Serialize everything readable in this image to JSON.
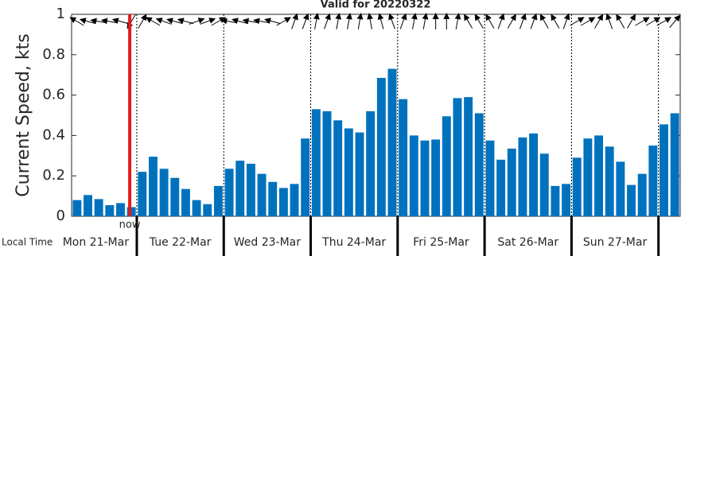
{
  "chart_data": {
    "type": "bar",
    "title": "Valid for 20220322",
    "y_label": "Current Speed, kts",
    "x_label": "Local Time",
    "categories": [
      null,
      null,
      null,
      null,
      null,
      null,
      null,
      null,
      null,
      null,
      null,
      null,
      null,
      null,
      null,
      null,
      null,
      null,
      null,
      null,
      null,
      null,
      null,
      null,
      null,
      null,
      null,
      null,
      null,
      null,
      null,
      null,
      null,
      null,
      null,
      null,
      null,
      null,
      null,
      null,
      null,
      null,
      null,
      null,
      null,
      null,
      null,
      null,
      null,
      null,
      null,
      null,
      null,
      null,
      null,
      null
    ],
    "values": [
      0.08,
      0.105,
      0.085,
      0.055,
      0.065,
      0.045,
      0.22,
      0.295,
      0.235,
      0.19,
      0.135,
      0.08,
      0.06,
      0.15,
      0.235,
      0.275,
      0.26,
      0.21,
      0.17,
      0.14,
      0.16,
      0.385,
      0.53,
      0.52,
      0.475,
      0.435,
      0.415,
      0.52,
      0.685,
      0.73,
      0.58,
      0.4,
      0.375,
      0.38,
      0.495,
      0.585,
      0.59,
      0.51,
      0.375,
      0.28,
      0.335,
      0.39,
      0.41,
      0.31,
      0.15,
      0.16,
      0.29,
      0.385,
      0.4,
      0.345,
      0.27,
      0.155,
      0.21,
      0.35,
      0.455,
      0.51
    ],
    "directions": [
      300,
      285,
      280,
      280,
      285,
      210,
      30,
      300,
      290,
      285,
      285,
      70,
      70,
      60,
      280,
      285,
      280,
      280,
      285,
      60,
      20,
      20,
      10,
      20,
      10,
      10,
      10,
      350,
      345,
      340,
      20,
      10,
      10,
      0,
      0,
      10,
      330,
      330,
      330,
      20,
      30,
      20,
      20,
      330,
      330,
      20,
      60,
      60,
      30,
      340,
      330,
      30,
      60,
      60,
      60,
      40
    ],
    "color": "#0072bd",
    "day_labels": [
      "Mon 21-Mar",
      "Tue 22-Mar",
      "Wed 23-Mar",
      "Thu 24-Mar",
      "Fri 25-Mar",
      "Sat 26-Mar",
      "Sun 27-Mar"
    ],
    "day_starts": [
      6,
      14,
      22,
      30,
      38,
      46,
      54
    ],
    "now": {
      "label": "now",
      "position": 5.35,
      "color": "#e41a1c"
    },
    "ylim": [
      0,
      1
    ],
    "yticks": [
      0,
      0.2,
      0.4,
      0.6,
      0.8,
      1
    ]
  }
}
